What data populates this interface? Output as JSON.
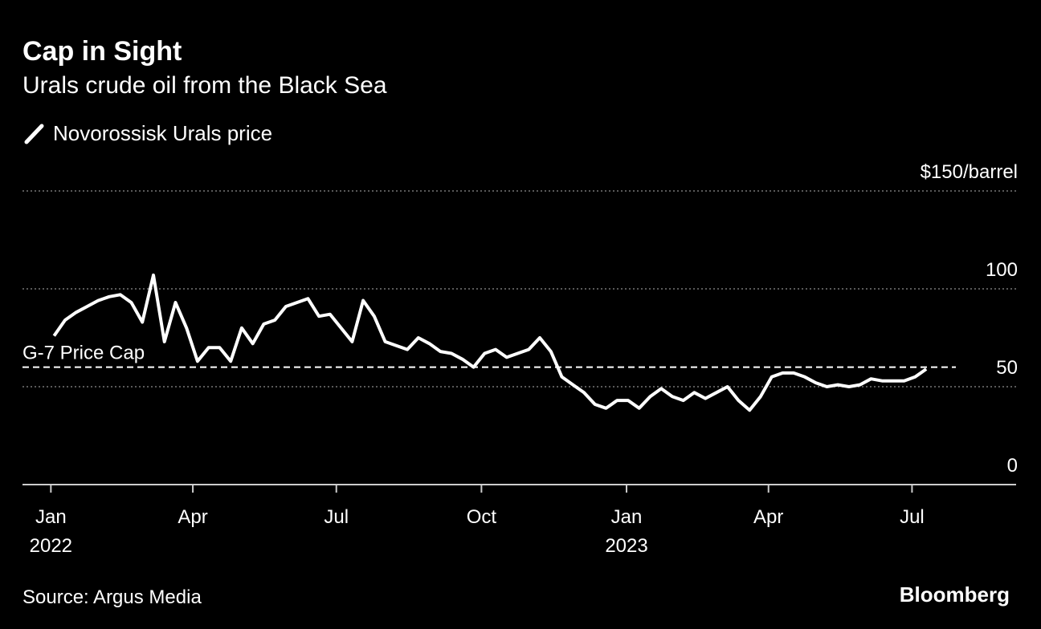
{
  "chart_data": {
    "type": "line",
    "title": "Cap in Sight",
    "subtitle": "Urals crude oil from the Black Sea",
    "source": "Source: Argus Media",
    "brand": "Bloomberg",
    "x": [
      "2022-01-03",
      "2022-01-10",
      "2022-01-17",
      "2022-01-24",
      "2022-01-31",
      "2022-02-07",
      "2022-02-14",
      "2022-02-21",
      "2022-02-28",
      "2022-03-07",
      "2022-03-14",
      "2022-03-21",
      "2022-03-28",
      "2022-04-04",
      "2022-04-11",
      "2022-04-18",
      "2022-04-25",
      "2022-05-02",
      "2022-05-09",
      "2022-05-16",
      "2022-05-23",
      "2022-05-30",
      "2022-06-06",
      "2022-06-13",
      "2022-06-20",
      "2022-06-27",
      "2022-07-04",
      "2022-07-11",
      "2022-07-18",
      "2022-07-25",
      "2022-08-01",
      "2022-08-08",
      "2022-08-15",
      "2022-08-22",
      "2022-08-29",
      "2022-09-05",
      "2022-09-12",
      "2022-09-19",
      "2022-09-26",
      "2022-10-03",
      "2022-10-10",
      "2022-10-17",
      "2022-10-24",
      "2022-10-31",
      "2022-11-07",
      "2022-11-14",
      "2022-11-21",
      "2022-11-28",
      "2022-12-05",
      "2022-12-12",
      "2022-12-19",
      "2022-12-26",
      "2023-01-02",
      "2023-01-09",
      "2023-01-16",
      "2023-01-23",
      "2023-01-30",
      "2023-02-06",
      "2023-02-13",
      "2023-02-20",
      "2023-02-27",
      "2023-03-06",
      "2023-03-13",
      "2023-03-20",
      "2023-03-27",
      "2023-04-03",
      "2023-04-10",
      "2023-04-17",
      "2023-04-24",
      "2023-05-01",
      "2023-05-08",
      "2023-05-15",
      "2023-05-22",
      "2023-05-29",
      "2023-06-05",
      "2023-06-12",
      "2023-06-19",
      "2023-06-26",
      "2023-07-03",
      "2023-07-10"
    ],
    "series": [
      {
        "name": "Novorossisk Urals price",
        "color": "#ffffff",
        "values": [
          76,
          84,
          88,
          91,
          94,
          96,
          97,
          93,
          83,
          107,
          73,
          93,
          80,
          63,
          70,
          70,
          63,
          80,
          72,
          82,
          84,
          91,
          93,
          95,
          86,
          87,
          80,
          73,
          94,
          86,
          73,
          71,
          69,
          75,
          72,
          68,
          67,
          64,
          60,
          67,
          69,
          65,
          67,
          69,
          75,
          68,
          55,
          51,
          47,
          41,
          39,
          43,
          43,
          39,
          45,
          49,
          45,
          43,
          47,
          44,
          47,
          50,
          43,
          38,
          45,
          55,
          57,
          57,
          55,
          52,
          50,
          51,
          50,
          51,
          54,
          53,
          53,
          53,
          55,
          59
        ]
      }
    ],
    "reference_line": {
      "value": 60,
      "label": "G-7 Price Cap"
    },
    "xlim": [
      "2021-12-14",
      "2023-09-05"
    ],
    "xticks": [
      {
        "value": "2022-01-01",
        "label": "Jan"
      },
      {
        "value": "2022-04-01",
        "label": "Apr"
      },
      {
        "value": "2022-07-01",
        "label": "Jul"
      },
      {
        "value": "2022-10-01",
        "label": "Oct"
      },
      {
        "value": "2023-01-01",
        "label": "Jan"
      },
      {
        "value": "2023-04-01",
        "label": "Apr"
      },
      {
        "value": "2023-07-01",
        "label": "Jul"
      }
    ],
    "x_year_labels": [
      {
        "value": "2022-01-01",
        "label": "2022"
      },
      {
        "value": "2023-01-01",
        "label": "2023"
      }
    ],
    "ylim": [
      0,
      150
    ],
    "yticks": [
      0,
      50,
      100,
      {
        "value": 150,
        "label": "$150/barrel"
      }
    ],
    "grid": true
  }
}
